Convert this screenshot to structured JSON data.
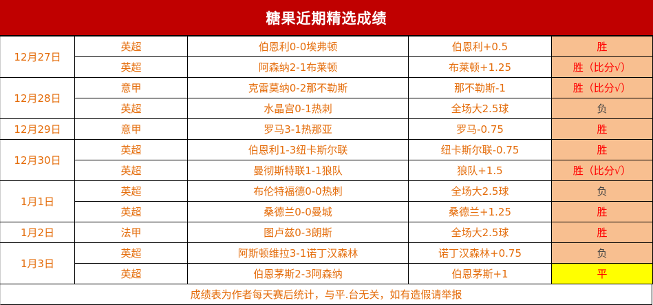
{
  "title": "糖果近期精选成绩",
  "groups": [
    {
      "date": "12月27日",
      "rows": [
        {
          "league": "英超",
          "match": "伯恩利0-0埃弗顿",
          "pick": "伯恩利+0.5",
          "result": "胜",
          "type": "win"
        },
        {
          "league": "英超",
          "match": "阿森纳2-1布莱顿",
          "pick": "布莱顿+1.25",
          "result": "胜（比分√）",
          "type": "win"
        }
      ]
    },
    {
      "date": "12月28日",
      "rows": [
        {
          "league": "意甲",
          "match": "克雷莫纳0-2那不勒斯",
          "pick": "那不勒斯-1",
          "result": "胜（比分√）",
          "type": "win"
        },
        {
          "league": "英超",
          "match": "水晶宫0-1热刺",
          "pick": "全场大2.5球",
          "result": "负",
          "type": "lose"
        }
      ]
    },
    {
      "date": "12月29日",
      "rows": [
        {
          "league": "意甲",
          "match": "罗马3-1热那亚",
          "pick": "罗马-0.75",
          "result": "胜",
          "type": "win"
        }
      ]
    },
    {
      "date": "12月30日",
      "rows": [
        {
          "league": "英超",
          "match": "伯恩利1-3纽卡斯尔联",
          "pick": "纽卡斯尔联-0.75",
          "result": "胜",
          "type": "win"
        },
        {
          "league": "英超",
          "match": "曼彻斯特联1-1狼队",
          "pick": "狼队+1.5",
          "result": "胜（比分√）",
          "type": "win"
        }
      ]
    },
    {
      "date": "1月1日",
      "rows": [
        {
          "league": "英超",
          "match": "布伦特福德0-0热刺",
          "pick": "全场大2.5球",
          "result": "负",
          "type": "lose"
        },
        {
          "league": "英超",
          "match": "桑德兰0-0曼城",
          "pick": "桑德兰+1.25",
          "result": "胜",
          "type": "win"
        }
      ]
    },
    {
      "date": "1月2日",
      "rows": [
        {
          "league": "法甲",
          "match": "图卢兹0-3朗斯",
          "pick": "全场大2.5球",
          "result": "胜",
          "type": "win"
        }
      ]
    },
    {
      "date": "1月3日",
      "rows": [
        {
          "league": "英超",
          "match": "阿斯顿维拉3-1诺丁汉森林",
          "pick": "诺丁汉森林+0.75",
          "result": "负",
          "type": "lose"
        },
        {
          "league": "英超",
          "match": "伯恩茅斯2-3阿森纳",
          "pick": "伯恩茅斯+1",
          "result": "平",
          "type": "draw"
        }
      ]
    }
  ],
  "footer": "成绩表为作者每天赛后统计，与平.台无关，如有造假请举报"
}
